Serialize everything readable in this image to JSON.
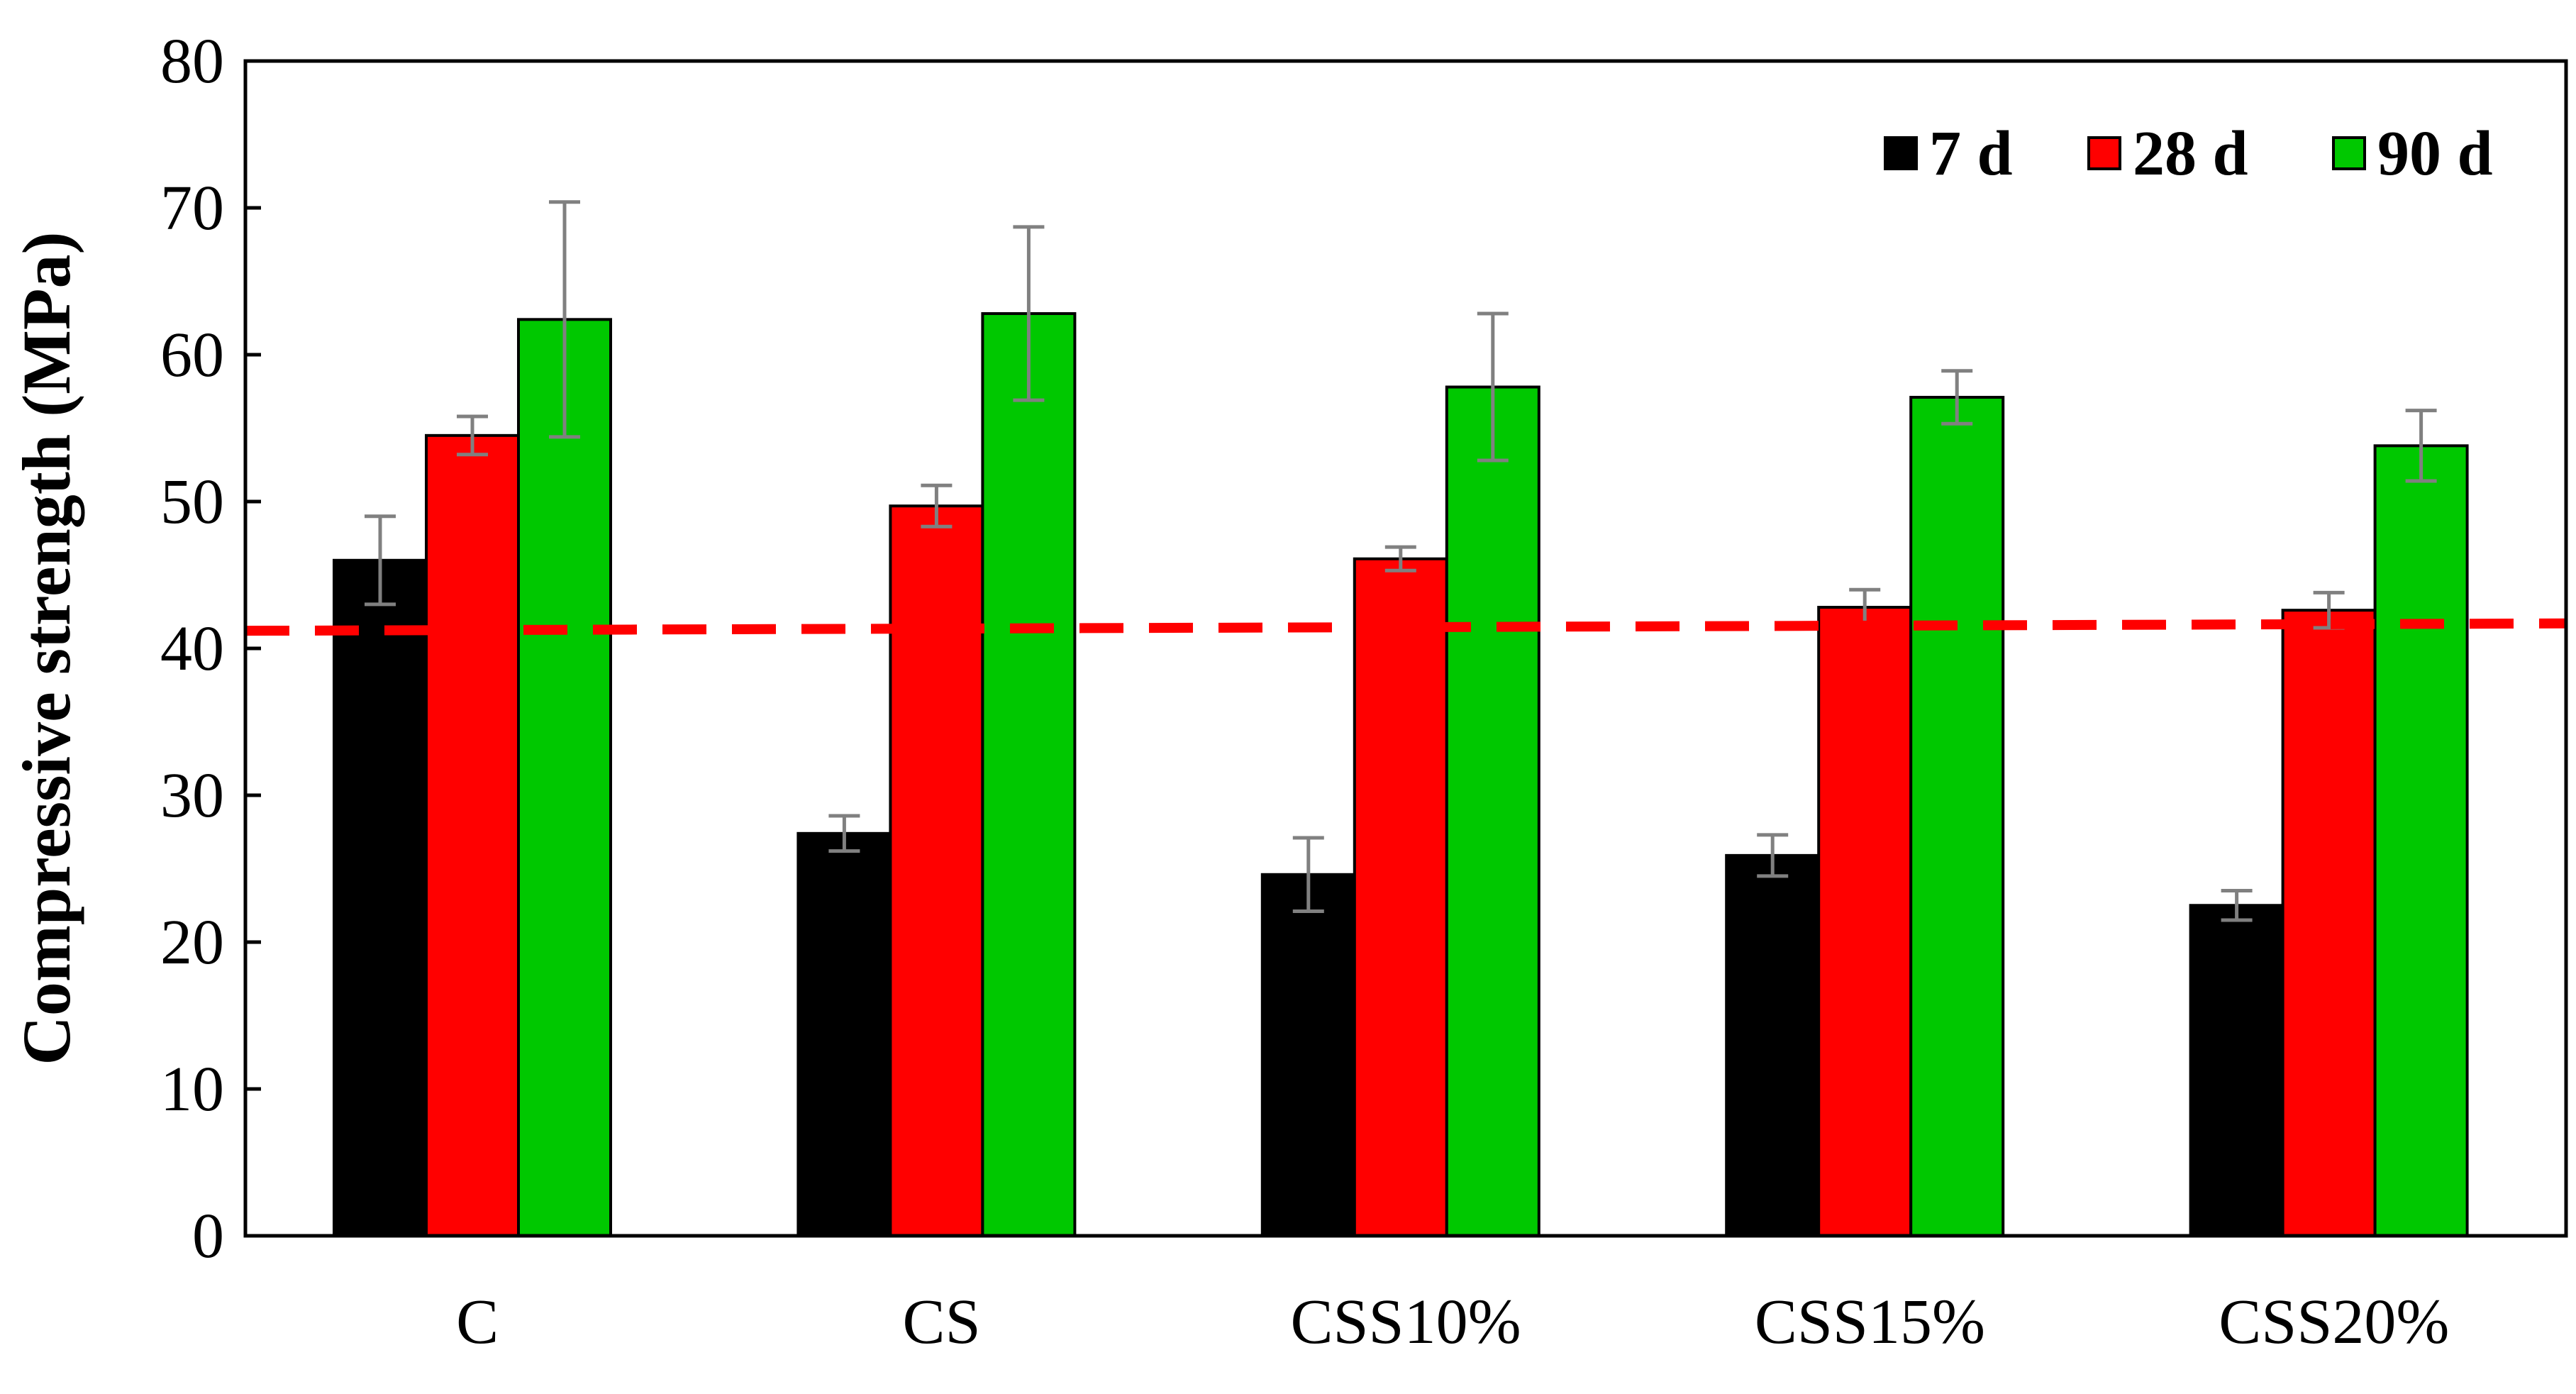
{
  "chart_data": {
    "type": "bar",
    "title": "",
    "xlabel": "",
    "ylabel": "Compressive strength (MPa)",
    "ylim": [
      0,
      80
    ],
    "yticks": [
      0,
      10,
      20,
      30,
      40,
      50,
      60,
      70,
      80
    ],
    "grid": false,
    "legend_position": "top-right",
    "categories": [
      "C",
      "CS",
      "CSS10%",
      "CSS15%",
      "CSS20%"
    ],
    "series": [
      {
        "name": "7 d",
        "color": "#000000",
        "values": [
          46.0,
          27.4,
          24.6,
          25.9,
          22.5
        ],
        "errors": [
          3.0,
          1.2,
          2.5,
          1.4,
          1.0
        ]
      },
      {
        "name": "28 d",
        "color": "#ff0000",
        "values": [
          54.5,
          49.7,
          46.1,
          42.8,
          42.6
        ],
        "errors": [
          1.3,
          1.4,
          0.8,
          1.2,
          1.2
        ]
      },
      {
        "name": "90 d",
        "color": "#00c800",
        "values": [
          62.4,
          62.8,
          57.8,
          57.1,
          53.8
        ],
        "errors": [
          8.0,
          5.9,
          5.0,
          1.8,
          2.4
        ]
      }
    ],
    "reference_line": {
      "y_start": 41.2,
      "y_end": 41.7,
      "color": "#ff0000",
      "style": "dashed"
    },
    "error_bar_color": "#808080"
  }
}
